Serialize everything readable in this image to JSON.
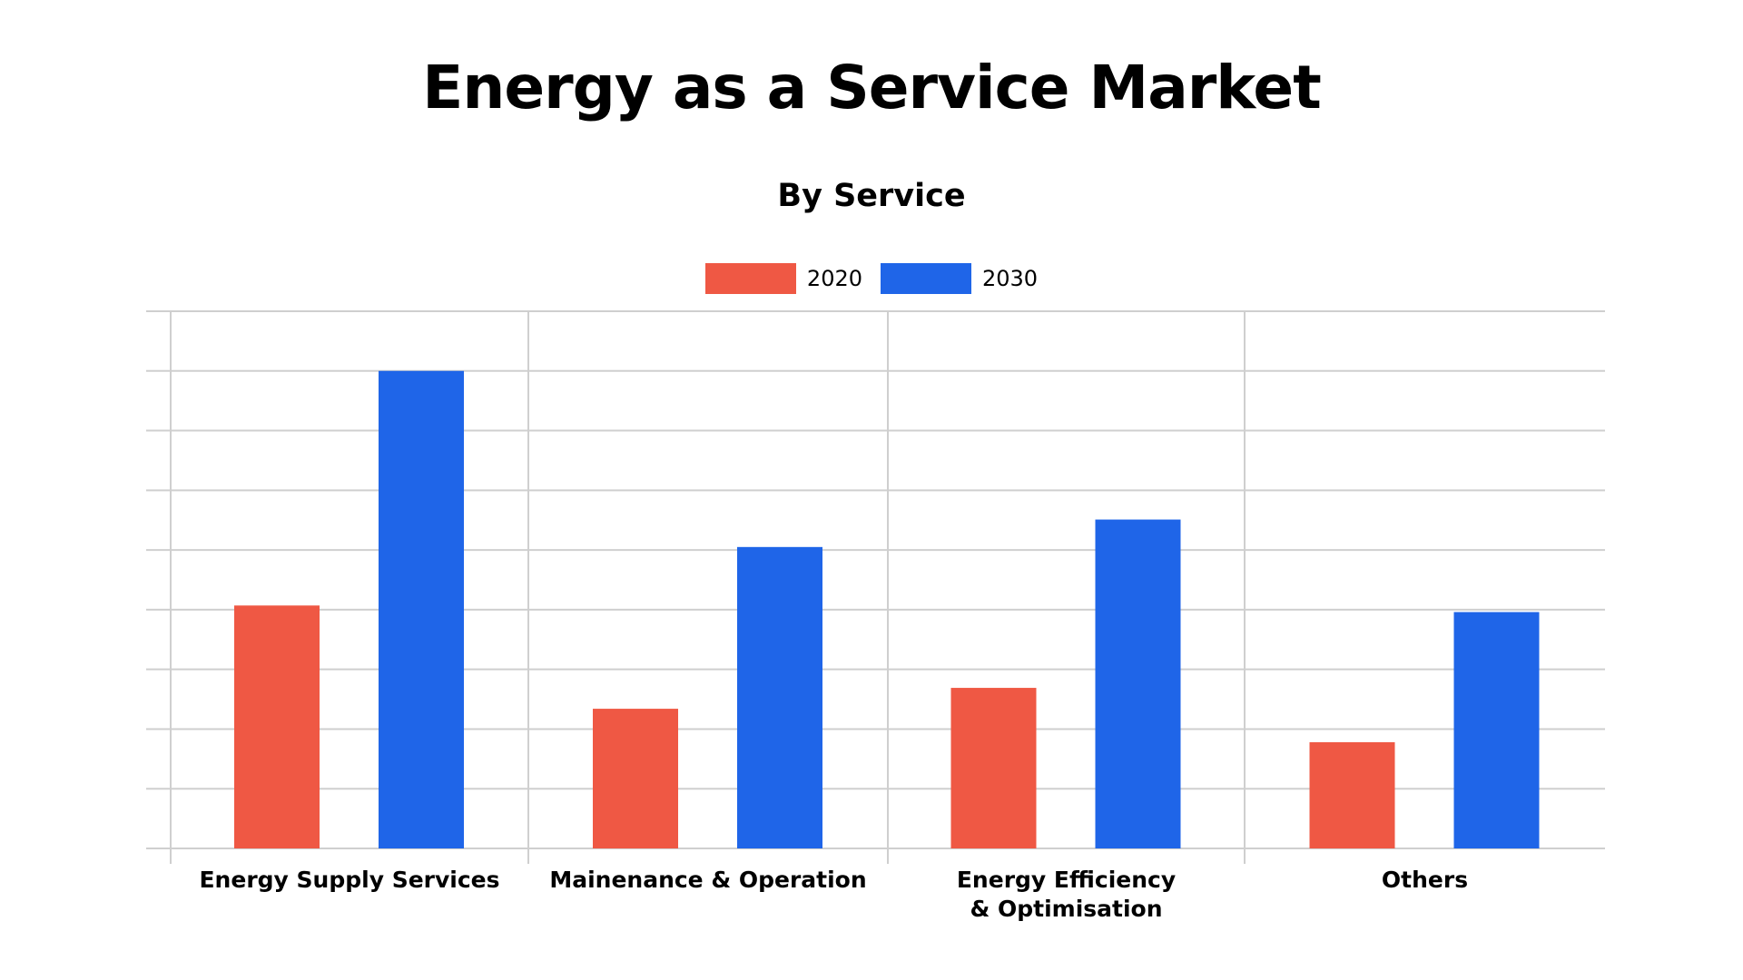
{
  "chart_data": {
    "type": "bar",
    "title": "Energy as a Service Market",
    "subtitle": "By Service",
    "categories": [
      [
        "Energy Supply Services"
      ],
      [
        "Mainenance & Operation"
      ],
      [
        "Energy Efficiency",
        "& Optimisation"
      ],
      [
        "Others"
      ]
    ],
    "series": [
      {
        "name": "2020",
        "color": "#EF5844",
        "values": [
          4.07,
          2.34,
          2.69,
          1.78
        ]
      },
      {
        "name": "2030",
        "color": "#1F65E8",
        "values": [
          8.0,
          5.05,
          5.51,
          3.96
        ]
      }
    ],
    "ylim": [
      0,
      9
    ],
    "y_tick_labels_shown": false,
    "grid": true,
    "legend_position": "top-center"
  }
}
